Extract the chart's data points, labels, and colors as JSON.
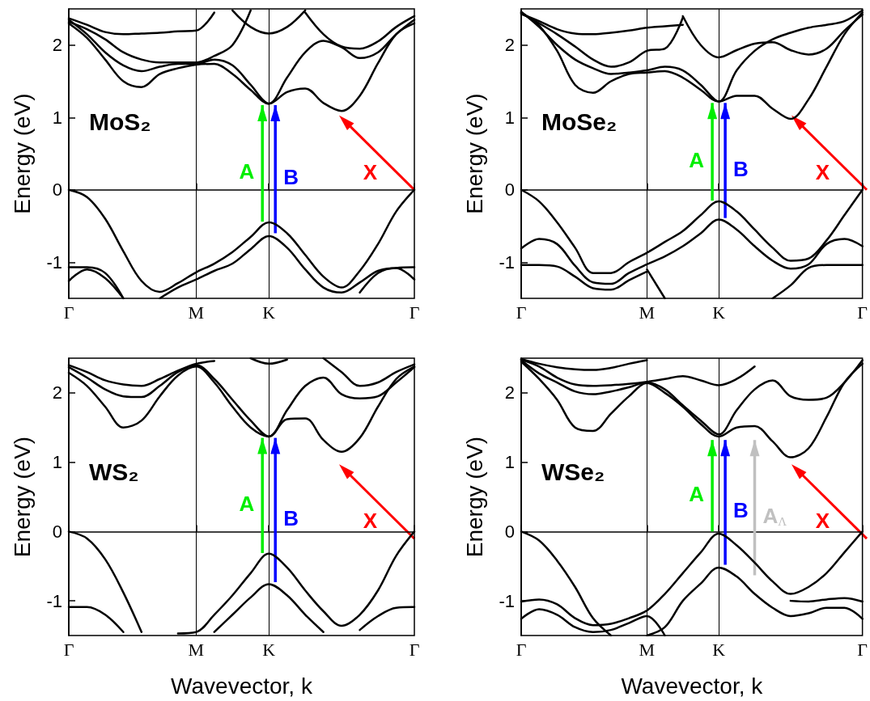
{
  "chart_data": [
    {
      "type": "line",
      "title": "MoS₂",
      "annotations": [
        "X"
      ],
      "ylabel": "Energy (eV)",
      "categories": [
        "Γ",
        null,
        null,
        null,
        null,
        null,
        null,
        "M",
        null,
        null,
        null,
        "K",
        null,
        null,
        null,
        null,
        null,
        null,
        null,
        "Γ"
      ],
      "ylim": [
        -1.5,
        2.5
      ],
      "yticks": [
        -1,
        0,
        1,
        2
      ],
      "marker": "none",
      "color": "#000000",
      "ref_lines": [
        {
          "axis": "x",
          "value": "M"
        },
        {
          "axis": "x",
          "value": "K"
        }
      ],
      "series": [
        {
          "values": [
            0,
            -0.1,
            -0.4,
            -0.85,
            -1.26,
            -1.41,
            -1.29,
            -1.14,
            -1.02,
            -0.86,
            -0.65,
            -0.45,
            -0.6,
            -0.9,
            -1.2,
            -1.35,
            -1.12,
            -0.75,
            -0.3,
            0
          ]
        },
        {
          "values": [
            null,
            null,
            null,
            null,
            null,
            -1.5,
            -1.35,
            -1.24,
            -1.12,
            -1.02,
            -0.82,
            -0.64,
            -0.8,
            -1.1,
            -1.35,
            -1.42,
            -1.28,
            -1.12,
            -1.08,
            -1.07
          ]
        },
        {
          "values": [
            -1.07,
            -1.07,
            -1.15,
            -1.5,
            null,
            null,
            null,
            null,
            null,
            null,
            null,
            null,
            null,
            null,
            null,
            null,
            null,
            null,
            null,
            null
          ]
        },
        {
          "values": [
            -1.26,
            -1.1,
            -1.22,
            -1.5,
            null,
            null,
            null,
            null,
            null,
            null,
            null,
            null,
            null,
            null,
            null,
            null,
            null,
            null,
            null,
            null
          ]
        },
        {
          "values": [
            null,
            null,
            null,
            null,
            null,
            null,
            null,
            null,
            null,
            null,
            null,
            null,
            null,
            null,
            null,
            null,
            -1.42,
            -1.15,
            -1.08,
            -1.24
          ]
        },
        {
          "values": [
            2.3,
            2.1,
            1.8,
            1.5,
            1.42,
            1.6,
            1.68,
            1.73,
            1.74,
            1.6,
            1.38,
            1.19,
            1.35,
            1.4,
            1.2,
            1.09,
            1.3,
            1.75,
            2.15,
            2.3
          ]
        },
        {
          "values": [
            2.35,
            2.15,
            1.9,
            1.72,
            1.64,
            1.7,
            1.74,
            1.74,
            1.8,
            1.72,
            1.45,
            1.19,
            1.55,
            1.9,
            2.06,
            1.97,
            1.82,
            1.9,
            2.15,
            2.35
          ]
        },
        {
          "values": [
            2.32,
            2.22,
            2.08,
            1.9,
            1.8,
            1.76,
            1.76,
            1.76,
            1.85,
            2.0,
            2.48,
            null,
            null,
            null,
            null,
            null,
            null,
            null,
            null,
            null
          ]
        },
        {
          "values": [
            2.37,
            2.28,
            2.18,
            2.15,
            2.16,
            2.17,
            2.19,
            2.2,
            2.45,
            null,
            null,
            null,
            null,
            null,
            null,
            null,
            null,
            null,
            null,
            null
          ]
        },
        {
          "values": [
            null,
            null,
            null,
            null,
            null,
            null,
            null,
            null,
            null,
            2.48,
            2.25,
            2.16,
            2.25,
            2.48,
            null,
            null,
            null,
            null,
            null,
            null
          ]
        },
        {
          "values": [
            null,
            null,
            null,
            null,
            null,
            null,
            null,
            null,
            null,
            null,
            null,
            null,
            null,
            2.45,
            2.15,
            1.98,
            1.95,
            2.05,
            2.25,
            2.4
          ]
        },
        {
          "type": "bar",
          "name": "A",
          "color": "#00ee00",
          "marker": "triangle",
          "values": [
            null,
            null,
            null,
            null,
            null,
            null,
            null,
            null,
            null,
            null,
            null,
            1.61,
            null,
            null,
            null,
            null,
            null,
            null,
            null,
            null
          ],
          "base": [
            null,
            null,
            null,
            null,
            null,
            null,
            null,
            null,
            null,
            null,
            null,
            -0.44,
            null,
            null,
            null,
            null,
            null,
            null,
            null,
            null
          ]
        },
        {
          "type": "bar",
          "name": "B",
          "color": "#0000ff",
          "marker": "triangle",
          "values": [
            null,
            null,
            null,
            null,
            null,
            null,
            null,
            null,
            null,
            null,
            null,
            1.77,
            null,
            null,
            null,
            null,
            null,
            null,
            null,
            null
          ],
          "base": [
            null,
            null,
            null,
            null,
            null,
            null,
            null,
            null,
            null,
            null,
            null,
            -0.6,
            null,
            null,
            null,
            null,
            null,
            null,
            null,
            null
          ]
        }
      ]
    },
    {
      "type": "line",
      "title": "MoSe₂",
      "annotations": [
        "X"
      ],
      "ylabel": "Energy (eV)",
      "categories": [
        "Γ",
        null,
        null,
        null,
        null,
        null,
        null,
        "M",
        null,
        null,
        null,
        "K",
        null,
        null,
        null,
        null,
        null,
        null,
        null,
        "Γ"
      ],
      "ylim": [
        -1.5,
        2.5
      ],
      "yticks": [
        -1,
        0,
        1,
        2
      ],
      "marker": "none",
      "color": "#000000",
      "ref_lines": [
        {
          "axis": "x",
          "value": "M"
        },
        {
          "axis": "x",
          "value": "K"
        }
      ],
      "series": [
        {
          "values": [
            0,
            -0.16,
            -0.45,
            -0.8,
            -1.15,
            -1.15,
            -1.0,
            -0.87,
            -0.72,
            -0.57,
            -0.35,
            -0.16,
            -0.3,
            -0.55,
            -0.8,
            -0.98,
            -0.95,
            -0.7,
            -0.35,
            0
          ]
        },
        {
          "values": [
            -0.81,
            -0.68,
            -0.75,
            -1.05,
            -1.28,
            -1.3,
            -1.15,
            -1.03,
            -0.92,
            -0.78,
            -0.6,
            -0.41,
            -0.55,
            -0.78,
            -0.98,
            -1.09,
            -1.03,
            -0.75,
            -0.68,
            -0.78
          ]
        },
        {
          "values": [
            -1.04,
            -1.04,
            -1.06,
            -1.2,
            -1.36,
            -1.38,
            -1.25,
            -1.13,
            null,
            null,
            null,
            null,
            null,
            null,
            null,
            null,
            null,
            null,
            null,
            null
          ]
        },
        {
          "values": [
            null,
            null,
            null,
            null,
            null,
            null,
            null,
            null,
            null,
            null,
            null,
            null,
            null,
            null,
            -1.5,
            -1.32,
            -1.08,
            -1.04,
            -1.04,
            -1.04
          ]
        },
        {
          "values": [
            null,
            null,
            null,
            null,
            null,
            null,
            null,
            -1.1,
            -1.5,
            null,
            null,
            null,
            null,
            null,
            null,
            null,
            null,
            null,
            null,
            null
          ]
        },
        {
          "values": [
            2.45,
            2.27,
            1.92,
            1.45,
            1.34,
            1.5,
            1.6,
            1.62,
            1.64,
            1.55,
            1.38,
            1.22,
            1.3,
            1.3,
            1.12,
            0.98,
            1.25,
            1.7,
            2.15,
            2.45
          ]
        },
        {
          "values": [
            2.46,
            2.25,
            2.0,
            1.8,
            1.68,
            1.6,
            1.62,
            1.65,
            1.7,
            1.65,
            1.45,
            1.22,
            1.65,
            1.92,
            2.08,
            2.17,
            2.24,
            2.28,
            2.33,
            2.48
          ]
        },
        {
          "values": [
            2.44,
            2.3,
            2.15,
            1.98,
            1.8,
            1.7,
            1.76,
            1.92,
            1.95,
            2.38,
            null,
            null,
            null,
            null,
            null,
            null,
            null,
            null,
            null,
            null
          ]
        },
        {
          "values": [
            null,
            null,
            null,
            null,
            null,
            null,
            null,
            null,
            null,
            2.4,
            2.0,
            1.83,
            1.93,
            2.02,
            2.04,
            1.93,
            1.87,
            1.95,
            2.2,
            2.42
          ]
        },
        {
          "values": [
            2.43,
            2.33,
            2.22,
            2.16,
            2.15,
            2.17,
            2.2,
            2.24,
            2.26,
            2.28,
            null,
            null,
            null,
            null,
            null,
            null,
            null,
            null,
            null,
            null
          ]
        },
        {
          "type": "bar",
          "name": "A",
          "color": "#00ee00",
          "marker": "triangle",
          "values": [
            null,
            null,
            null,
            null,
            null,
            null,
            null,
            null,
            null,
            null,
            null,
            1.35,
            null,
            null,
            null,
            null,
            null,
            null,
            null,
            null
          ],
          "base": [
            null,
            null,
            null,
            null,
            null,
            null,
            null,
            null,
            null,
            null,
            null,
            -0.15,
            null,
            null,
            null,
            null,
            null,
            null,
            null,
            null
          ]
        },
        {
          "type": "bar",
          "name": "B",
          "color": "#0000ff",
          "marker": "triangle",
          "values": [
            null,
            null,
            null,
            null,
            null,
            null,
            null,
            null,
            null,
            null,
            null,
            1.59,
            null,
            null,
            null,
            null,
            null,
            null,
            null,
            null
          ],
          "base": [
            null,
            null,
            null,
            null,
            null,
            null,
            null,
            null,
            null,
            null,
            null,
            -0.39,
            null,
            null,
            null,
            null,
            null,
            null,
            null,
            null
          ]
        }
      ]
    },
    {
      "type": "line",
      "title": "WS₂",
      "annotations": [
        "X"
      ],
      "ylabel": "Energy (eV)",
      "xlabel": "Wavevector, k",
      "categories": [
        "Γ",
        null,
        null,
        null,
        null,
        null,
        null,
        "M",
        null,
        null,
        null,
        "K",
        null,
        null,
        null,
        null,
        null,
        null,
        null,
        "Γ"
      ],
      "ylim": [
        -1.5,
        2.5
      ],
      "yticks": [
        -1,
        0,
        1,
        2
      ],
      "marker": "none",
      "color": "#000000",
      "ref_lines": [
        {
          "axis": "x",
          "value": "M"
        },
        {
          "axis": "x",
          "value": "K"
        }
      ],
      "series": [
        {
          "values": [
            0,
            -0.1,
            -0.4,
            -0.88,
            -1.45,
            null,
            null,
            null,
            null,
            null,
            null,
            null,
            null,
            null,
            null,
            null,
            null,
            null,
            null,
            null
          ]
        },
        {
          "values": [
            null,
            null,
            null,
            null,
            null,
            null,
            -1.47,
            -1.45,
            -1.2,
            -0.92,
            -0.6,
            -0.32,
            -0.52,
            -0.85,
            -1.15,
            -1.36,
            -1.2,
            -0.85,
            -0.35,
            0
          ]
        },
        {
          "values": [
            null,
            null,
            null,
            null,
            null,
            null,
            null,
            null,
            -1.45,
            -1.2,
            -0.95,
            -0.76,
            -0.92,
            -1.2,
            -1.45,
            null,
            null,
            null,
            null,
            null
          ]
        },
        {
          "values": [
            null,
            null,
            null,
            null,
            null,
            null,
            null,
            null,
            null,
            null,
            null,
            null,
            null,
            null,
            null,
            null,
            -1.42,
            -1.22,
            -1.1,
            -1.09
          ]
        },
        {
          "values": [
            -1.09,
            -1.09,
            -1.2,
            -1.45,
            null,
            null,
            null,
            null,
            null,
            null,
            null,
            null,
            null,
            null,
            null,
            null,
            null,
            null,
            null,
            null
          ]
        },
        {
          "values": [
            2.29,
            2.1,
            1.8,
            1.5,
            1.6,
            1.95,
            2.25,
            2.38,
            2.15,
            1.8,
            1.5,
            1.37,
            1.62,
            1.63,
            1.32,
            1.15,
            1.35,
            1.8,
            2.2,
            2.38
          ]
        },
        {
          "values": [
            2.37,
            2.22,
            2.05,
            1.95,
            1.94,
            2.1,
            2.3,
            2.4,
            2.2,
            1.9,
            1.6,
            1.37,
            1.75,
            2.1,
            2.22,
            1.98,
            1.92,
            1.95,
            2.15,
            2.37
          ]
        },
        {
          "values": [
            2.4,
            2.3,
            2.18,
            2.12,
            2.1,
            2.2,
            2.32,
            2.42,
            2.46,
            null,
            null,
            null,
            null,
            null,
            null,
            null,
            null,
            null,
            null,
            null
          ]
        },
        {
          "values": [
            null,
            null,
            null,
            null,
            null,
            null,
            null,
            null,
            null,
            null,
            2.5,
            2.42,
            2.48,
            null,
            null,
            null,
            null,
            null,
            null,
            null
          ]
        },
        {
          "values": [
            null,
            null,
            null,
            null,
            null,
            null,
            null,
            null,
            null,
            null,
            null,
            null,
            null,
            null,
            2.5,
            2.3,
            2.1,
            2.15,
            2.3,
            2.41
          ]
        },
        {
          "type": "bar",
          "name": "A",
          "color": "#00ee00",
          "marker": "triangle",
          "values": [
            null,
            null,
            null,
            null,
            null,
            null,
            null,
            null,
            null,
            null,
            null,
            1.66,
            null,
            null,
            null,
            null,
            null,
            null,
            null,
            null
          ],
          "base": [
            null,
            null,
            null,
            null,
            null,
            null,
            null,
            null,
            null,
            null,
            null,
            -0.31,
            null,
            null,
            null,
            null,
            null,
            null,
            null,
            null
          ]
        },
        {
          "type": "bar",
          "name": "B",
          "color": "#0000ff",
          "marker": "triangle",
          "values": [
            null,
            null,
            null,
            null,
            null,
            null,
            null,
            null,
            null,
            null,
            null,
            2.08,
            null,
            null,
            null,
            null,
            null,
            null,
            null,
            null
          ],
          "base": [
            null,
            null,
            null,
            null,
            null,
            null,
            null,
            null,
            null,
            null,
            null,
            -0.73,
            null,
            null,
            null,
            null,
            null,
            null,
            null,
            null
          ]
        }
      ]
    },
    {
      "type": "line",
      "title": "WSe₂",
      "annotations": [
        "X"
      ],
      "ylabel": "Energy (eV)",
      "xlabel": "Wavevector, k",
      "categories": [
        "Γ",
        null,
        null,
        null,
        null,
        null,
        null,
        "M",
        null,
        null,
        null,
        "K",
        null,
        null,
        null,
        null,
        null,
        null,
        null,
        "Γ"
      ],
      "ylim": [
        -1.5,
        2.5
      ],
      "yticks": [
        -1,
        0,
        1,
        2
      ],
      "marker": "none",
      "color": "#000000",
      "ref_lines": [
        {
          "axis": "x",
          "value": "M"
        },
        {
          "axis": "x",
          "value": "K"
        }
      ],
      "series": [
        {
          "values": [
            0,
            -0.13,
            -0.42,
            -0.8,
            -1.25,
            -1.5,
            null,
            null,
            null,
            null,
            null,
            null,
            null,
            null,
            null,
            null,
            null,
            null,
            null,
            null
          ]
        },
        {
          "values": [
            -1.01,
            -0.98,
            -1.05,
            -1.25,
            -1.35,
            -1.33,
            -1.25,
            -1.14,
            -0.9,
            -0.6,
            -0.3,
            -0.03,
            -0.2,
            -0.45,
            -0.72,
            -0.9,
            -0.8,
            -0.6,
            -0.3,
            0
          ]
        },
        {
          "values": [
            -1.26,
            -1.12,
            -1.2,
            -1.38,
            -1.45,
            -1.42,
            -1.32,
            -1.22,
            -1.5,
            null,
            null,
            null,
            null,
            null,
            null,
            null,
            null,
            null,
            null,
            null
          ]
        },
        {
          "values": [
            null,
            null,
            null,
            null,
            null,
            null,
            null,
            -1.5,
            -1.38,
            -1.0,
            -0.75,
            -0.52,
            -0.65,
            -0.9,
            -1.1,
            -1.22,
            -1.18,
            -1.1,
            -1.1,
            -1.26
          ]
        },
        {
          "values": [
            null,
            null,
            null,
            null,
            null,
            null,
            null,
            null,
            null,
            null,
            null,
            null,
            null,
            null,
            null,
            -1.0,
            -1.01,
            -0.98,
            -0.96,
            -1.01
          ]
        },
        {
          "values": [
            2.45,
            2.2,
            1.9,
            1.5,
            1.45,
            1.7,
            1.95,
            2.14,
            2.0,
            1.8,
            1.55,
            1.37,
            1.5,
            1.52,
            1.3,
            1.07,
            1.2,
            1.65,
            2.15,
            2.42
          ]
        },
        {
          "values": [
            2.47,
            2.28,
            2.15,
            2.02,
            1.98,
            2.02,
            2.08,
            2.15,
            2.05,
            1.82,
            1.6,
            1.4,
            1.75,
            2.05,
            2.18,
            1.95,
            1.9,
            1.93,
            2.15,
            2.47
          ]
        },
        {
          "values": [
            2.48,
            2.38,
            2.22,
            2.12,
            2.1,
            2.11,
            2.13,
            2.16,
            2.2,
            2.24,
            2.18,
            2.11,
            2.2,
            2.38,
            null,
            null,
            null,
            null,
            null,
            null
          ]
        },
        {
          "values": [
            2.49,
            2.42,
            2.37,
            2.34,
            2.33,
            2.36,
            2.42,
            2.47,
            null,
            null,
            null,
            null,
            null,
            null,
            null,
            null,
            null,
            null,
            null,
            null
          ]
        },
        {
          "type": "bar",
          "name": "A",
          "color": "#00ee00",
          "marker": "triangle",
          "values": [
            null,
            null,
            null,
            null,
            null,
            null,
            null,
            null,
            null,
            null,
            null,
            1.32,
            null,
            null,
            null,
            null,
            null,
            null,
            null,
            null
          ],
          "base": [
            null,
            null,
            null,
            null,
            null,
            null,
            null,
            null,
            null,
            null,
            null,
            0,
            null,
            null,
            null,
            null,
            null,
            null,
            null,
            null
          ]
        },
        {
          "type": "bar",
          "name": "B",
          "color": "#0000ff",
          "marker": "triangle",
          "values": [
            null,
            null,
            null,
            null,
            null,
            null,
            null,
            null,
            null,
            null,
            null,
            1.8,
            null,
            null,
            null,
            null,
            null,
            null,
            null,
            null
          ],
          "base": [
            null,
            null,
            null,
            null,
            null,
            null,
            null,
            null,
            null,
            null,
            null,
            -0.48,
            null,
            null,
            null,
            null,
            null,
            null,
            null,
            null
          ]
        },
        {
          "type": "bar",
          "name": "A$_{Λ}$",
          "color": "#c0c0c0",
          "marker": "triangle",
          "values": [
            null,
            null,
            null,
            null,
            null,
            null,
            null,
            null,
            null,
            null,
            null,
            null,
            null,
            1.95,
            null,
            null,
            null,
            null,
            null,
            null
          ],
          "base": [
            null,
            null,
            null,
            null,
            null,
            null,
            null,
            null,
            null,
            null,
            null,
            null,
            null,
            -0.63,
            null,
            null,
            null,
            null,
            null,
            null
          ]
        }
      ]
    }
  ]
}
